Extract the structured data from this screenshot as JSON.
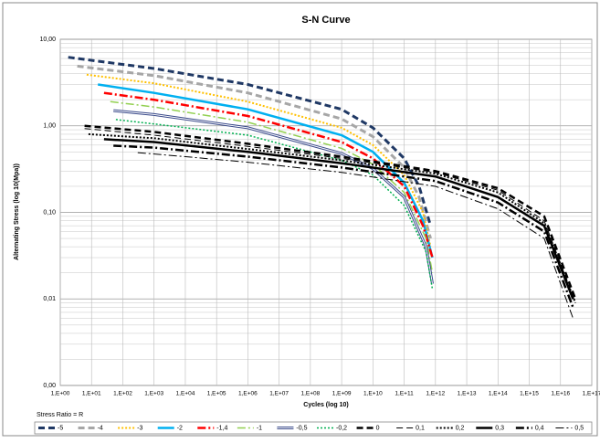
{
  "chart_data": {
    "type": "line",
    "title": "S-N Curve",
    "x_label": "Cycles  (log 10)",
    "y_label": "Alternating Stress (log 10(Mpa))",
    "xscale": "log",
    "yscale": "log",
    "grid": true,
    "minor_grid": true,
    "legend": "bottom",
    "legend_title": "Stress Ratio = R",
    "xlim": [
      1,
      1e+17
    ],
    "ylim": [
      0.001,
      10
    ],
    "xticks": [
      {
        "value": 1,
        "label": "1,E+00"
      },
      {
        "value": 10,
        "label": "1,E+01"
      },
      {
        "value": 100,
        "label": "1,E+02"
      },
      {
        "value": 1000,
        "label": "1,E+03"
      },
      {
        "value": 10000,
        "label": "1,E+04"
      },
      {
        "value": 100000,
        "label": "1,E+05"
      },
      {
        "value": 1000000,
        "label": "1,E+06"
      },
      {
        "value": 10000000,
        "label": "1,E+07"
      },
      {
        "value": 100000000,
        "label": "1,E+08"
      },
      {
        "value": 1000000000,
        "label": "1,E+09"
      },
      {
        "value": 10000000000.0,
        "label": "1,E+10"
      },
      {
        "value": 100000000000.0,
        "label": "1,E+11"
      },
      {
        "value": 1000000000000.0,
        "label": "1,E+12"
      },
      {
        "value": 10000000000000.0,
        "label": "1,E+13"
      },
      {
        "value": 100000000000000.0,
        "label": "1,E+14"
      },
      {
        "value": 1000000000000000.0,
        "label": "1,E+15"
      },
      {
        "value": 1e+16,
        "label": "1,E+16"
      },
      {
        "value": 1e+17,
        "label": "1,E+17"
      }
    ],
    "yticks": [
      {
        "value": 0.001,
        "label": "0,00"
      },
      {
        "value": 0.01,
        "label": "0,01"
      },
      {
        "value": 0.1,
        "label": "0,10"
      },
      {
        "value": 1,
        "label": "1,00"
      },
      {
        "value": 10,
        "label": "10,00"
      }
    ],
    "series": [
      {
        "name": "-5",
        "color": "#1f3864",
        "style": "dashed",
        "width": 3,
        "x": [
          1.8,
          1000,
          1000000,
          1000000000,
          10000000000.0,
          100000000000.0,
          300000000000.0,
          700000000000.0
        ],
        "values": [
          6.2,
          4.6,
          3.0,
          1.55,
          0.95,
          0.42,
          0.2,
          0.07
        ]
      },
      {
        "name": "-4",
        "color": "#a6a6a6",
        "style": "dashed",
        "width": 3,
        "x": [
          3.5,
          1000,
          1000000,
          1000000000,
          10000000000.0,
          100000000000.0,
          300000000000.0,
          700000000000.0
        ],
        "values": [
          4.9,
          3.8,
          2.4,
          1.2,
          0.75,
          0.33,
          0.15,
          0.05
        ]
      },
      {
        "name": "-3",
        "color": "#ffc000",
        "style": "dotted",
        "width": 2,
        "x": [
          7,
          1000,
          1000000,
          1000000000,
          10000000000.0,
          100000000000.0,
          400000000000.0,
          700000000000.0
        ],
        "values": [
          3.9,
          3.1,
          1.9,
          0.95,
          0.6,
          0.27,
          0.1,
          0.04
        ]
      },
      {
        "name": "-2",
        "color": "#00b0f0",
        "style": "solid",
        "width": 2.5,
        "x": [
          16,
          1000,
          1000000,
          1000000000,
          10000000000.0,
          100000000000.0,
          400000000000.0,
          800000000000.0
        ],
        "values": [
          3.0,
          2.4,
          1.55,
          0.78,
          0.5,
          0.22,
          0.08,
          0.03
        ]
      },
      {
        "name": "-1,4",
        "color": "#ff0000",
        "style": "dashdot",
        "width": 2.5,
        "x": [
          25,
          1000,
          1000000,
          1000000000,
          10000000000.0,
          100000000000.0,
          400000000000.0,
          800000000000.0
        ],
        "values": [
          2.4,
          2.0,
          1.3,
          0.65,
          0.42,
          0.2,
          0.07,
          0.03
        ]
      },
      {
        "name": "-1",
        "color": "#92d050",
        "style": "dashdot",
        "width": 1.5,
        "x": [
          40,
          1000,
          1000000,
          1000000000,
          10000000000.0,
          100000000000.0,
          500000000000.0,
          800000000000.0
        ],
        "values": [
          1.9,
          1.65,
          1.1,
          0.55,
          0.36,
          0.17,
          0.05,
          0.02
        ]
      },
      {
        "name": "-0,5",
        "color": "#3a4a8a",
        "style": "double",
        "width": 3,
        "x": [
          50,
          1000,
          1000000,
          1000000000,
          10000000000.0,
          100000000000.0,
          500000000000.0,
          800000000000.0
        ],
        "values": [
          1.5,
          1.35,
          0.95,
          0.48,
          0.32,
          0.15,
          0.04,
          0.015
        ]
      },
      {
        "name": "-0,2",
        "color": "#00b050",
        "style": "dotted",
        "width": 1.5,
        "x": [
          60,
          1000,
          1000000,
          1000000000,
          10000000000.0,
          100000000000.0,
          500000000000.0,
          800000000000.0
        ],
        "values": [
          1.18,
          1.05,
          0.78,
          0.4,
          0.27,
          0.12,
          0.035,
          0.013
        ]
      },
      {
        "name": "0",
        "color": "#000000",
        "style": "dashed",
        "width": 2.5,
        "x": [
          6,
          1000,
          1000000,
          1000000000,
          1000000000000.0,
          100000000000000.0,
          3000000000000000.0,
          3e+16
        ],
        "values": [
          1.0,
          0.85,
          0.62,
          0.44,
          0.3,
          0.19,
          0.09,
          0.01
        ]
      },
      {
        "name": "0,1",
        "color": "#000000",
        "style": "dashed",
        "width": 1,
        "x": [
          6,
          1000,
          1000000,
          1000000000,
          1000000000000.0,
          100000000000000.0,
          3000000000000000.0,
          3e+16
        ],
        "values": [
          0.93,
          0.78,
          0.58,
          0.42,
          0.29,
          0.18,
          0.08,
          0.009
        ]
      },
      {
        "name": "0,2",
        "color": "#000000",
        "style": "dotted",
        "width": 2,
        "x": [
          8,
          1000,
          1000000,
          1000000000,
          1000000000000.0,
          100000000000000.0,
          3000000000000000.0,
          3e+16
        ],
        "values": [
          0.8,
          0.72,
          0.54,
          0.4,
          0.28,
          0.17,
          0.075,
          0.009
        ]
      },
      {
        "name": "0,3",
        "color": "#000000",
        "style": "solid",
        "width": 2.5,
        "x": [
          25,
          1000,
          1000000,
          1000000000,
          1000000000000.0,
          100000000000000.0,
          3000000000000000.0,
          2.5e+16
        ],
        "values": [
          0.7,
          0.65,
          0.5,
          0.37,
          0.26,
          0.15,
          0.07,
          0.01
        ]
      },
      {
        "name": "0,4",
        "color": "#000000",
        "style": "dashdot",
        "width": 2.5,
        "x": [
          50,
          1000,
          1000000,
          1000000000,
          1000000000000.0,
          100000000000000.0,
          3000000000000000.0,
          2.5e+16
        ],
        "values": [
          0.59,
          0.56,
          0.44,
          0.33,
          0.23,
          0.13,
          0.06,
          0.008
        ]
      },
      {
        "name": "0,5",
        "color": "#000000",
        "style": "dashdot",
        "width": 1,
        "x": [
          300,
          10000,
          1000000,
          1000000000,
          1000000000000.0,
          100000000000000.0,
          3000000000000000.0,
          2.5e+16
        ],
        "values": [
          0.49,
          0.44,
          0.38,
          0.29,
          0.2,
          0.11,
          0.05,
          0.006
        ]
      }
    ]
  }
}
